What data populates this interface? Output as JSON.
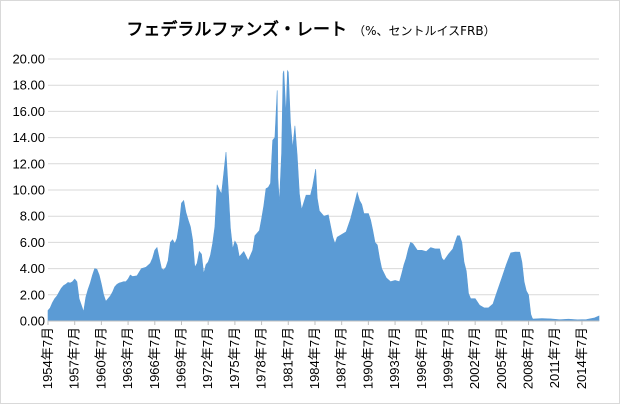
{
  "chart_data": {
    "type": "area",
    "title": "フェデラルファンズ・レート",
    "subtitle": "（%、セントルイスFRB）",
    "color": "#5b9bd5",
    "ylim": [
      0,
      20
    ],
    "yticks": [
      "0.00",
      "2.00",
      "4.00",
      "6.00",
      "8.00",
      "10.00",
      "12.00",
      "14.00",
      "16.00",
      "18.00",
      "20.00"
    ],
    "grid": true,
    "xlim": [
      "1954-07",
      "2016-06"
    ],
    "xticks": [
      "1954年7月",
      "1957年7月",
      "1960年7月",
      "1963年7月",
      "1966年7月",
      "1969年7月",
      "1972年7月",
      "1975年7月",
      "1978年7月",
      "1981年7月",
      "1984年7月",
      "1987年7月",
      "1990年7月",
      "1993年7月",
      "1996年7月",
      "1999年7月",
      "2002年7月",
      "2005年7月",
      "2008年7月",
      "2011年7月",
      "2014年7月"
    ],
    "x": [
      "1954-07",
      "1954-10",
      "1955-01",
      "1955-04",
      "1955-07",
      "1955-10",
      "1956-01",
      "1956-04",
      "1956-07",
      "1956-10",
      "1957-01",
      "1957-04",
      "1957-07",
      "1957-10",
      "1958-01",
      "1958-04",
      "1958-07",
      "1958-10",
      "1959-01",
      "1959-04",
      "1959-07",
      "1959-10",
      "1960-01",
      "1960-04",
      "1960-07",
      "1960-10",
      "1961-01",
      "1961-04",
      "1961-07",
      "1961-10",
      "1962-01",
      "1962-04",
      "1962-07",
      "1962-10",
      "1963-01",
      "1963-04",
      "1963-07",
      "1963-10",
      "1964-01",
      "1964-07",
      "1965-01",
      "1965-07",
      "1966-01",
      "1966-04",
      "1966-07",
      "1966-10",
      "1967-01",
      "1967-04",
      "1967-07",
      "1967-10",
      "1968-01",
      "1968-04",
      "1968-07",
      "1968-10",
      "1969-01",
      "1969-04",
      "1969-07",
      "1969-10",
      "1970-01",
      "1970-04",
      "1970-07",
      "1970-10",
      "1971-01",
      "1971-04",
      "1971-07",
      "1971-10",
      "1972-01",
      "1972-04",
      "1972-07",
      "1972-10",
      "1973-01",
      "1973-04",
      "1973-07",
      "1973-10",
      "1974-01",
      "1974-04",
      "1974-07",
      "1974-10",
      "1975-01",
      "1975-04",
      "1975-07",
      "1975-10",
      "1976-01",
      "1976-07",
      "1977-01",
      "1977-07",
      "1977-10",
      "1978-01",
      "1978-04",
      "1978-07",
      "1978-10",
      "1979-01",
      "1979-04",
      "1979-07",
      "1979-10",
      "1980-01",
      "1980-04",
      "1980-05",
      "1980-07",
      "1980-10",
      "1980-12",
      "1981-01",
      "1981-04",
      "1981-06",
      "1981-07",
      "1981-10",
      "1982-01",
      "1982-04",
      "1982-07",
      "1982-10",
      "1983-01",
      "1983-07",
      "1984-01",
      "1984-04",
      "1984-08",
      "1984-10",
      "1985-01",
      "1985-07",
      "1986-01",
      "1986-07",
      "1986-10",
      "1987-01",
      "1987-07",
      "1988-01",
      "1988-07",
      "1989-01",
      "1989-04",
      "1989-07",
      "1989-10",
      "1990-01",
      "1990-07",
      "1990-10",
      "1991-01",
      "1991-04",
      "1991-07",
      "1991-10",
      "1992-01",
      "1992-07",
      "1993-01",
      "1993-07",
      "1994-01",
      "1994-04",
      "1994-07",
      "1994-10",
      "1995-01",
      "1995-04",
      "1995-07",
      "1996-01",
      "1996-07",
      "1997-01",
      "1997-07",
      "1998-01",
      "1998-07",
      "1998-10",
      "1999-01",
      "1999-07",
      "2000-01",
      "2000-04",
      "2000-07",
      "2000-10",
      "2001-01",
      "2001-04",
      "2001-07",
      "2001-10",
      "2002-01",
      "2002-07",
      "2003-01",
      "2003-07",
      "2004-01",
      "2004-07",
      "2004-10",
      "2005-01",
      "2005-07",
      "2006-01",
      "2006-07",
      "2007-01",
      "2007-07",
      "2007-10",
      "2008-01",
      "2008-04",
      "2008-07",
      "2008-10",
      "2008-12",
      "2009-01",
      "2010-01",
      "2011-01",
      "2012-01",
      "2013-01",
      "2014-01",
      "2015-01",
      "2015-12",
      "2016-06"
    ],
    "values": [
      0.8,
      1.0,
      1.4,
      1.7,
      1.9,
      2.2,
      2.5,
      2.7,
      2.8,
      2.95,
      2.9,
      3.0,
      3.2,
      3.0,
      1.7,
      1.2,
      0.7,
      1.8,
      2.4,
      2.9,
      3.5,
      4.0,
      3.95,
      3.5,
      2.8,
      2.0,
      1.5,
      1.7,
      1.9,
      2.2,
      2.6,
      2.8,
      2.9,
      2.95,
      3.0,
      3.0,
      3.2,
      3.5,
      3.4,
      3.45,
      4.0,
      4.1,
      4.4,
      4.8,
      5.4,
      5.6,
      4.8,
      4.0,
      3.9,
      4.1,
      4.6,
      6.0,
      6.2,
      5.9,
      6.3,
      7.4,
      9.0,
      9.2,
      8.3,
      7.7,
      7.2,
      6.2,
      4.1,
      4.4,
      5.3,
      5.1,
      3.6,
      4.3,
      4.5,
      5.0,
      5.9,
      7.2,
      10.4,
      10.0,
      9.7,
      11.3,
      12.9,
      10.1,
      7.1,
      5.5,
      6.1,
      5.8,
      4.9,
      5.3,
      4.6,
      5.4,
      6.5,
      6.7,
      6.9,
      7.8,
      8.8,
      10.1,
      10.2,
      10.5,
      13.8,
      14.0,
      17.6,
      10.9,
      9.0,
      12.8,
      18.9,
      19.1,
      15.7,
      19.1,
      19.0,
      15.1,
      13.2,
      14.9,
      12.6,
      9.7,
      8.5,
      9.6,
      9.6,
      10.3,
      11.6,
      9.4,
      8.4,
      8.0,
      8.1,
      6.4,
      5.9,
      6.4,
      6.6,
      6.8,
      7.8,
      9.1,
      9.8,
      9.2,
      8.9,
      8.2,
      8.2,
      7.7,
      6.9,
      6.0,
      5.8,
      4.8,
      4.0,
      3.3,
      3.0,
      3.1,
      3.0,
      3.6,
      4.3,
      4.8,
      5.5,
      6.0,
      5.9,
      5.4,
      5.4,
      5.3,
      5.6,
      5.5,
      5.5,
      4.8,
      4.6,
      5.1,
      5.5,
      6.0,
      6.5,
      6.5,
      6.0,
      4.5,
      3.8,
      2.1,
      1.7,
      1.7,
      1.2,
      1.0,
      1.0,
      1.3,
      1.8,
      2.3,
      3.3,
      4.3,
      5.2,
      5.26,
      5.25,
      4.5,
      3.0,
      2.3,
      2.0,
      0.5,
      0.2,
      0.15,
      0.18,
      0.16,
      0.1,
      0.14,
      0.09,
      0.11,
      0.24,
      0.38
    ]
  }
}
